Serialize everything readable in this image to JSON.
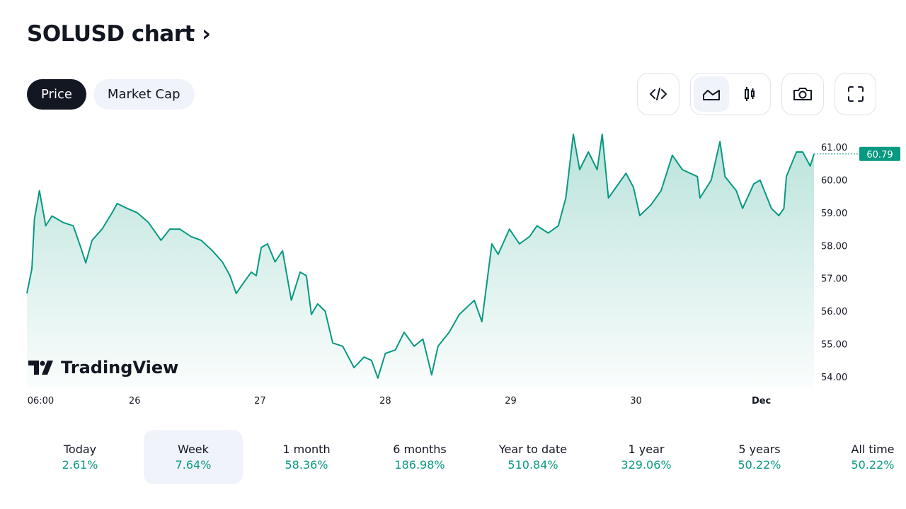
{
  "header": {
    "title": "SOLUSD chart ›"
  },
  "tabs": [
    {
      "label": "Price"
    },
    {
      "label": "Market Cap"
    }
  ],
  "toolbar": {
    "icons": [
      "embed-code-icon",
      "area-chart-icon",
      "candles-icon",
      "camera-icon",
      "fullscreen-icon"
    ]
  },
  "watermark": "TradingView",
  "colors": {
    "line": "#089981",
    "accent_dark": "#131722",
    "selected_bg": "#f0f3fa"
  },
  "chart_data": {
    "type": "area",
    "title": "SOLUSD",
    "ylabel": "",
    "xlabel": "",
    "ylim": [
      53.8,
      61.5
    ],
    "xlim": [
      25.14,
      31.42
    ],
    "y_ticks": [
      {
        "v": 54,
        "label": "54.00"
      },
      {
        "v": 55,
        "label": "55.00"
      },
      {
        "v": 56,
        "label": "56.00"
      },
      {
        "v": 57,
        "label": "57.00"
      },
      {
        "v": 58,
        "label": "58.00"
      },
      {
        "v": 59,
        "label": "59.00"
      },
      {
        "v": 60,
        "label": "60.00"
      },
      {
        "v": 61,
        "label": "61.00"
      }
    ],
    "x_ticks": [
      {
        "v": 25.25,
        "label": "06:00"
      },
      {
        "v": 26,
        "label": "26"
      },
      {
        "v": 27,
        "label": "27"
      },
      {
        "v": 28,
        "label": "28"
      },
      {
        "v": 29,
        "label": "29"
      },
      {
        "v": 30,
        "label": "30"
      },
      {
        "v": 31,
        "label": "Dec"
      }
    ],
    "last_price": {
      "v": 60.79,
      "label": "60.79"
    },
    "x": [
      25.14,
      25.18,
      25.2,
      25.24,
      25.29,
      25.34,
      25.43,
      25.51,
      25.57,
      25.61,
      25.66,
      25.74,
      25.82,
      25.86,
      25.94,
      26.02,
      26.11,
      26.21,
      26.28,
      26.36,
      26.45,
      26.53,
      26.62,
      26.7,
      26.76,
      26.81,
      26.87,
      26.93,
      26.97,
      27.01,
      27.06,
      27.12,
      27.18,
      27.25,
      27.32,
      27.37,
      27.41,
      27.46,
      27.52,
      27.58,
      27.66,
      27.75,
      27.83,
      27.89,
      27.94,
      28.0,
      28.08,
      28.15,
      28.23,
      28.3,
      28.37,
      28.42,
      28.51,
      28.59,
      28.71,
      28.77,
      28.85,
      28.9,
      28.99,
      29.07,
      29.15,
      29.21,
      29.3,
      29.38,
      29.44,
      29.5,
      29.55,
      29.62,
      29.69,
      29.73,
      29.78,
      29.86,
      29.92,
      29.98,
      30.03,
      30.12,
      30.2,
      30.29,
      30.37,
      30.49,
      30.51,
      30.6,
      30.67,
      30.71,
      30.8,
      30.85,
      30.94,
      30.99,
      31.08,
      31.14,
      31.18,
      31.2,
      31.28,
      31.33,
      31.39,
      31.42
    ],
    "values": [
      56.54,
      57.3,
      58.8,
      59.67,
      58.6,
      58.9,
      58.7,
      58.6,
      57.94,
      57.47,
      58.16,
      58.5,
      59.0,
      59.28,
      59.13,
      59.0,
      58.7,
      58.16,
      58.5,
      58.5,
      58.27,
      58.16,
      57.84,
      57.5,
      57.08,
      56.54,
      56.87,
      57.19,
      57.08,
      57.94,
      58.05,
      57.5,
      57.84,
      56.33,
      57.19,
      57.08,
      55.9,
      56.22,
      56.0,
      55.03,
      54.93,
      54.28,
      54.6,
      54.5,
      53.96,
      54.71,
      54.82,
      55.36,
      54.93,
      55.15,
      54.06,
      54.93,
      55.36,
      55.9,
      56.33,
      55.68,
      58.05,
      57.73,
      58.5,
      58.05,
      58.27,
      58.6,
      58.38,
      58.6,
      59.45,
      61.39,
      60.31,
      60.85,
      60.31,
      61.39,
      59.45,
      59.88,
      60.2,
      59.77,
      58.91,
      59.24,
      59.67,
      60.75,
      60.31,
      60.1,
      59.45,
      59.99,
      61.17,
      60.1,
      59.67,
      59.13,
      59.88,
      59.99,
      59.13,
      58.91,
      59.13,
      60.1,
      60.85,
      60.85,
      60.42,
      60.79
    ]
  },
  "periods": [
    {
      "label": "Today",
      "value": "2.61%"
    },
    {
      "label": "Week",
      "value": "7.64%"
    },
    {
      "label": "1 month",
      "value": "58.36%"
    },
    {
      "label": "6 months",
      "value": "186.98%"
    },
    {
      "label": "Year to date",
      "value": "510.84%"
    },
    {
      "label": "1 year",
      "value": "329.06%"
    },
    {
      "label": "5 years",
      "value": "50.22%"
    },
    {
      "label": "All time",
      "value": "50.22%"
    }
  ]
}
